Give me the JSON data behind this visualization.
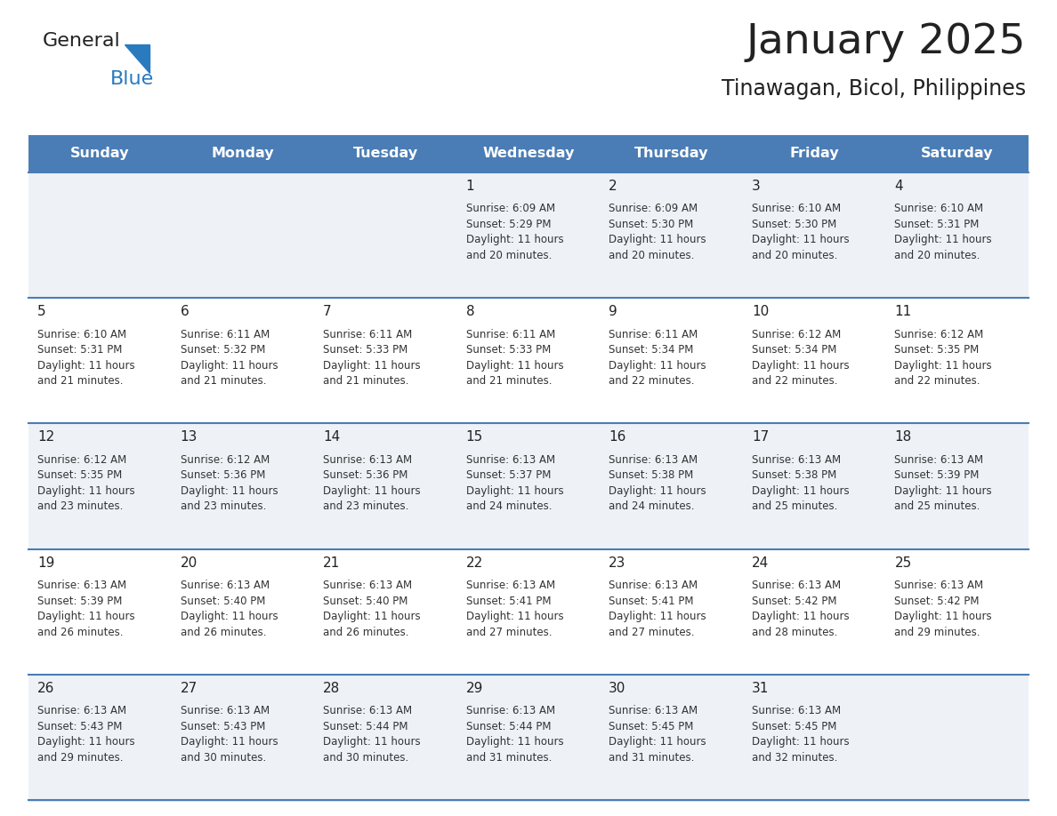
{
  "title": "January 2025",
  "subtitle": "Tinawagan, Bicol, Philippines",
  "days_of_week": [
    "Sunday",
    "Monday",
    "Tuesday",
    "Wednesday",
    "Thursday",
    "Friday",
    "Saturday"
  ],
  "header_bg": "#4a7db5",
  "header_text": "#ffffff",
  "odd_row_bg": "#eef2f7",
  "even_row_bg": "#ffffff",
  "cell_border": "#4a7db5",
  "day_number_color": "#222222",
  "text_color": "#333333",
  "logo_general_color": "#222222",
  "logo_blue_color": "#2a7abf",
  "calendar_data": [
    [
      null,
      null,
      null,
      {
        "day": 1,
        "sunrise": "6:09 AM",
        "sunset": "5:29 PM",
        "daylight": "11 hours\nand 20 minutes."
      },
      {
        "day": 2,
        "sunrise": "6:09 AM",
        "sunset": "5:30 PM",
        "daylight": "11 hours\nand 20 minutes."
      },
      {
        "day": 3,
        "sunrise": "6:10 AM",
        "sunset": "5:30 PM",
        "daylight": "11 hours\nand 20 minutes."
      },
      {
        "day": 4,
        "sunrise": "6:10 AM",
        "sunset": "5:31 PM",
        "daylight": "11 hours\nand 20 minutes."
      }
    ],
    [
      {
        "day": 5,
        "sunrise": "6:10 AM",
        "sunset": "5:31 PM",
        "daylight": "11 hours\nand 21 minutes."
      },
      {
        "day": 6,
        "sunrise": "6:11 AM",
        "sunset": "5:32 PM",
        "daylight": "11 hours\nand 21 minutes."
      },
      {
        "day": 7,
        "sunrise": "6:11 AM",
        "sunset": "5:33 PM",
        "daylight": "11 hours\nand 21 minutes."
      },
      {
        "day": 8,
        "sunrise": "6:11 AM",
        "sunset": "5:33 PM",
        "daylight": "11 hours\nand 21 minutes."
      },
      {
        "day": 9,
        "sunrise": "6:11 AM",
        "sunset": "5:34 PM",
        "daylight": "11 hours\nand 22 minutes."
      },
      {
        "day": 10,
        "sunrise": "6:12 AM",
        "sunset": "5:34 PM",
        "daylight": "11 hours\nand 22 minutes."
      },
      {
        "day": 11,
        "sunrise": "6:12 AM",
        "sunset": "5:35 PM",
        "daylight": "11 hours\nand 22 minutes."
      }
    ],
    [
      {
        "day": 12,
        "sunrise": "6:12 AM",
        "sunset": "5:35 PM",
        "daylight": "11 hours\nand 23 minutes."
      },
      {
        "day": 13,
        "sunrise": "6:12 AM",
        "sunset": "5:36 PM",
        "daylight": "11 hours\nand 23 minutes."
      },
      {
        "day": 14,
        "sunrise": "6:13 AM",
        "sunset": "5:36 PM",
        "daylight": "11 hours\nand 23 minutes."
      },
      {
        "day": 15,
        "sunrise": "6:13 AM",
        "sunset": "5:37 PM",
        "daylight": "11 hours\nand 24 minutes."
      },
      {
        "day": 16,
        "sunrise": "6:13 AM",
        "sunset": "5:38 PM",
        "daylight": "11 hours\nand 24 minutes."
      },
      {
        "day": 17,
        "sunrise": "6:13 AM",
        "sunset": "5:38 PM",
        "daylight": "11 hours\nand 25 minutes."
      },
      {
        "day": 18,
        "sunrise": "6:13 AM",
        "sunset": "5:39 PM",
        "daylight": "11 hours\nand 25 minutes."
      }
    ],
    [
      {
        "day": 19,
        "sunrise": "6:13 AM",
        "sunset": "5:39 PM",
        "daylight": "11 hours\nand 26 minutes."
      },
      {
        "day": 20,
        "sunrise": "6:13 AM",
        "sunset": "5:40 PM",
        "daylight": "11 hours\nand 26 minutes."
      },
      {
        "day": 21,
        "sunrise": "6:13 AM",
        "sunset": "5:40 PM",
        "daylight": "11 hours\nand 26 minutes."
      },
      {
        "day": 22,
        "sunrise": "6:13 AM",
        "sunset": "5:41 PM",
        "daylight": "11 hours\nand 27 minutes."
      },
      {
        "day": 23,
        "sunrise": "6:13 AM",
        "sunset": "5:41 PM",
        "daylight": "11 hours\nand 27 minutes."
      },
      {
        "day": 24,
        "sunrise": "6:13 AM",
        "sunset": "5:42 PM",
        "daylight": "11 hours\nand 28 minutes."
      },
      {
        "day": 25,
        "sunrise": "6:13 AM",
        "sunset": "5:42 PM",
        "daylight": "11 hours\nand 29 minutes."
      }
    ],
    [
      {
        "day": 26,
        "sunrise": "6:13 AM",
        "sunset": "5:43 PM",
        "daylight": "11 hours\nand 29 minutes."
      },
      {
        "day": 27,
        "sunrise": "6:13 AM",
        "sunset": "5:43 PM",
        "daylight": "11 hours\nand 30 minutes."
      },
      {
        "day": 28,
        "sunrise": "6:13 AM",
        "sunset": "5:44 PM",
        "daylight": "11 hours\nand 30 minutes."
      },
      {
        "day": 29,
        "sunrise": "6:13 AM",
        "sunset": "5:44 PM",
        "daylight": "11 hours\nand 31 minutes."
      },
      {
        "day": 30,
        "sunrise": "6:13 AM",
        "sunset": "5:45 PM",
        "daylight": "11 hours\nand 31 minutes."
      },
      {
        "day": 31,
        "sunrise": "6:13 AM",
        "sunset": "5:45 PM",
        "daylight": "11 hours\nand 32 minutes."
      },
      null
    ]
  ]
}
